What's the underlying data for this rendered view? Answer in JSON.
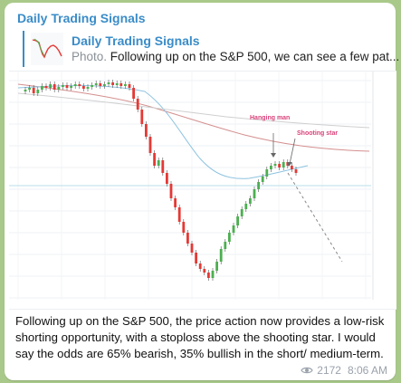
{
  "channel": {
    "name": "Daily Trading Signals"
  },
  "reply": {
    "title": "Daily Trading Signals",
    "type": "Photo",
    "snippet": "Following up on the S&P 500, we can see a few pat..."
  },
  "chart": {
    "annotations": [
      "Hanging man",
      "Shooting star"
    ],
    "annotation_color": "#d9437a",
    "up_color": "#4caf50",
    "down_color": "#e53935"
  },
  "message": {
    "text": "Following up on the S&P 500, the price action now provides a low-risk shorting opportunity, with a stoploss above the shooting star. I would say the odds are 65% bearish, 35% bullish in the short/ medium-term.",
    "views": "2172",
    "time": "8:06 AM"
  },
  "colors": {
    "accent": "#3a8cc8",
    "background": "#a9c98a"
  },
  "icons": {
    "views": "eye-icon"
  }
}
